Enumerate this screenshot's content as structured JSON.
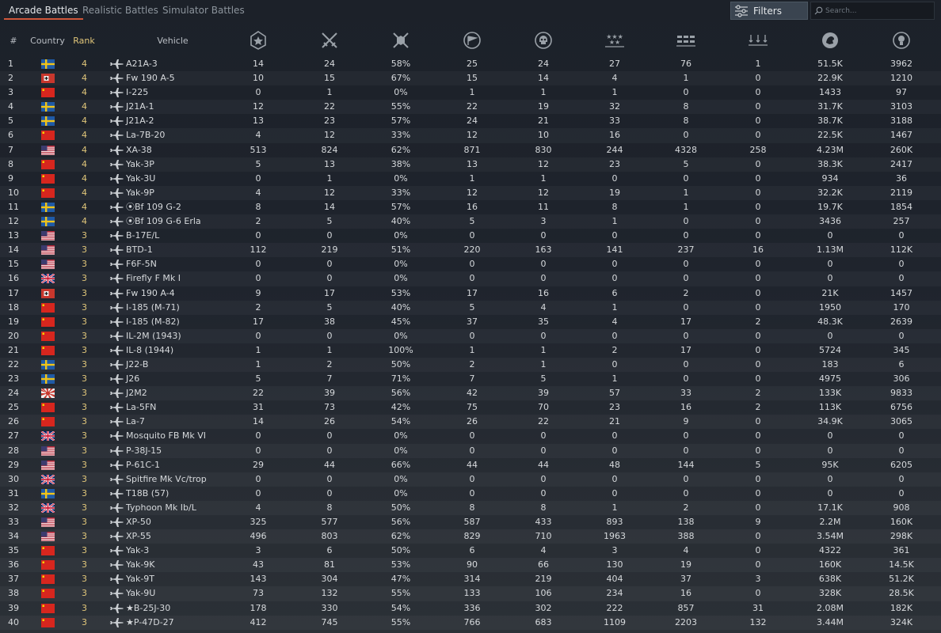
{
  "tabs": [
    {
      "label": "Arcade Battles",
      "active": true
    },
    {
      "label": "Realistic Battles",
      "active": false
    },
    {
      "label": "Simulator Battles",
      "active": false
    }
  ],
  "toolbar": {
    "filters_label": "Filters",
    "search_placeholder": "Search...",
    "search_value": ""
  },
  "columns": {
    "num": "#",
    "country": "Country",
    "rank": "Rank",
    "vehicle": "Vehicle",
    "stat_icons": [
      "battles-icon",
      "victories-icon",
      "win-rate-icon",
      "respawns-icon",
      "deaths-icon",
      "air-targets-destroyed-icon",
      "ground-targets-destroyed-icon",
      "naval-targets-destroyed-icon",
      "silver-lions-icon",
      "research-points-icon"
    ]
  },
  "colors": {
    "accent": "#d0563a",
    "rank": "#e0c67a",
    "text": "#d6d9dc"
  },
  "rows": [
    {
      "num": "1",
      "country": "sweden",
      "rank": "4",
      "vehicle": "A21A-3",
      "stats": [
        "14",
        "24",
        "58%",
        "25",
        "24",
        "27",
        "76",
        "1",
        "51.5K",
        "3962"
      ]
    },
    {
      "num": "2",
      "country": "germany",
      "rank": "4",
      "vehicle": "Fw 190 A-5",
      "stats": [
        "10",
        "15",
        "67%",
        "15",
        "14",
        "4",
        "1",
        "0",
        "22.9K",
        "1210"
      ]
    },
    {
      "num": "3",
      "country": "china",
      "rank": "4",
      "vehicle": "I-225",
      "stats": [
        "0",
        "1",
        "0%",
        "1",
        "1",
        "1",
        "0",
        "0",
        "1433",
        "97"
      ]
    },
    {
      "num": "4",
      "country": "sweden",
      "rank": "4",
      "vehicle": "J21A-1",
      "stats": [
        "12",
        "22",
        "55%",
        "22",
        "19",
        "32",
        "8",
        "0",
        "31.7K",
        "3103"
      ]
    },
    {
      "num": "5",
      "country": "sweden",
      "rank": "4",
      "vehicle": "J21A-2",
      "stats": [
        "13",
        "23",
        "57%",
        "24",
        "21",
        "33",
        "8",
        "0",
        "38.7K",
        "3188"
      ]
    },
    {
      "num": "6",
      "country": "china",
      "rank": "4",
      "vehicle": "La-7B-20",
      "stats": [
        "4",
        "12",
        "33%",
        "12",
        "10",
        "16",
        "0",
        "0",
        "22.5K",
        "1467"
      ]
    },
    {
      "num": "7",
      "country": "usa",
      "rank": "4",
      "vehicle": "XA-38",
      "stats": [
        "513",
        "824",
        "62%",
        "871",
        "830",
        "244",
        "4328",
        "258",
        "4.23M",
        "260K"
      ]
    },
    {
      "num": "8",
      "country": "china",
      "rank": "4",
      "vehicle": "Yak-3P",
      "stats": [
        "5",
        "13",
        "38%",
        "13",
        "12",
        "23",
        "5",
        "0",
        "38.3K",
        "2417"
      ]
    },
    {
      "num": "9",
      "country": "china",
      "rank": "4",
      "vehicle": "Yak-3U",
      "stats": [
        "0",
        "1",
        "0%",
        "1",
        "1",
        "0",
        "0",
        "0",
        "934",
        "36"
      ]
    },
    {
      "num": "10",
      "country": "china",
      "rank": "4",
      "vehicle": "Yak-9P",
      "stats": [
        "4",
        "12",
        "33%",
        "12",
        "12",
        "19",
        "1",
        "0",
        "32.2K",
        "2119"
      ]
    },
    {
      "num": "11",
      "country": "sweden",
      "rank": "4",
      "vehicle": "⦿Bf 109 G-2",
      "stats": [
        "8",
        "14",
        "57%",
        "16",
        "11",
        "8",
        "1",
        "0",
        "19.7K",
        "1854"
      ]
    },
    {
      "num": "12",
      "country": "sweden",
      "rank": "4",
      "vehicle": "⦿Bf 109 G-6 Erla",
      "stats": [
        "2",
        "5",
        "40%",
        "5",
        "3",
        "1",
        "0",
        "0",
        "3436",
        "257"
      ]
    },
    {
      "num": "13",
      "country": "usa",
      "rank": "3",
      "vehicle": "B-17E/L",
      "stats": [
        "0",
        "0",
        "0%",
        "0",
        "0",
        "0",
        "0",
        "0",
        "0",
        "0"
      ]
    },
    {
      "num": "14",
      "country": "usa",
      "rank": "3",
      "vehicle": "BTD-1",
      "stats": [
        "112",
        "219",
        "51%",
        "220",
        "163",
        "141",
        "237",
        "16",
        "1.13M",
        "112K"
      ]
    },
    {
      "num": "15",
      "country": "usa",
      "rank": "3",
      "vehicle": "F6F-5N",
      "stats": [
        "0",
        "0",
        "0%",
        "0",
        "0",
        "0",
        "0",
        "0",
        "0",
        "0"
      ]
    },
    {
      "num": "16",
      "country": "uk",
      "rank": "3",
      "vehicle": "Firefly F Mk I",
      "stats": [
        "0",
        "0",
        "0%",
        "0",
        "0",
        "0",
        "0",
        "0",
        "0",
        "0"
      ]
    },
    {
      "num": "17",
      "country": "germany",
      "rank": "3",
      "vehicle": "Fw 190 A-4",
      "stats": [
        "9",
        "17",
        "53%",
        "17",
        "16",
        "6",
        "2",
        "0",
        "21K",
        "1457"
      ]
    },
    {
      "num": "18",
      "country": "china",
      "rank": "3",
      "vehicle": "I-185 (M-71)",
      "stats": [
        "2",
        "5",
        "40%",
        "5",
        "4",
        "1",
        "0",
        "0",
        "1950",
        "170"
      ]
    },
    {
      "num": "19",
      "country": "china",
      "rank": "3",
      "vehicle": "I-185 (M-82)",
      "stats": [
        "17",
        "38",
        "45%",
        "37",
        "35",
        "4",
        "17",
        "2",
        "48.3K",
        "2639"
      ]
    },
    {
      "num": "20",
      "country": "china",
      "rank": "3",
      "vehicle": "IL-2M (1943)",
      "stats": [
        "0",
        "0",
        "0%",
        "0",
        "0",
        "0",
        "0",
        "0",
        "0",
        "0"
      ]
    },
    {
      "num": "21",
      "country": "china",
      "rank": "3",
      "vehicle": "IL-8 (1944)",
      "stats": [
        "1",
        "1",
        "100%",
        "1",
        "1",
        "2",
        "17",
        "0",
        "5724",
        "345"
      ]
    },
    {
      "num": "22",
      "country": "sweden",
      "rank": "3",
      "vehicle": "J22-B",
      "stats": [
        "1",
        "2",
        "50%",
        "2",
        "1",
        "0",
        "0",
        "0",
        "183",
        "6"
      ]
    },
    {
      "num": "23",
      "country": "sweden",
      "rank": "3",
      "vehicle": "J26",
      "stats": [
        "5",
        "7",
        "71%",
        "7",
        "5",
        "1",
        "0",
        "0",
        "4975",
        "306"
      ]
    },
    {
      "num": "24",
      "country": "japan",
      "rank": "3",
      "vehicle": "J2M2",
      "stats": [
        "22",
        "39",
        "56%",
        "42",
        "39",
        "57",
        "33",
        "2",
        "133K",
        "9833"
      ]
    },
    {
      "num": "25",
      "country": "china",
      "rank": "3",
      "vehicle": "La-5FN",
      "stats": [
        "31",
        "73",
        "42%",
        "75",
        "70",
        "23",
        "16",
        "2",
        "113K",
        "6756"
      ]
    },
    {
      "num": "26",
      "country": "china",
      "rank": "3",
      "vehicle": "La-7",
      "stats": [
        "14",
        "26",
        "54%",
        "26",
        "22",
        "21",
        "9",
        "0",
        "34.9K",
        "3065"
      ]
    },
    {
      "num": "27",
      "country": "uk",
      "rank": "3",
      "vehicle": "Mosquito FB Mk VI",
      "stats": [
        "0",
        "0",
        "0%",
        "0",
        "0",
        "0",
        "0",
        "0",
        "0",
        "0"
      ]
    },
    {
      "num": "28",
      "country": "usa",
      "rank": "3",
      "vehicle": "P-38J-15",
      "stats": [
        "0",
        "0",
        "0%",
        "0",
        "0",
        "0",
        "0",
        "0",
        "0",
        "0"
      ]
    },
    {
      "num": "29",
      "country": "usa",
      "rank": "3",
      "vehicle": "P-61C-1",
      "stats": [
        "29",
        "44",
        "66%",
        "44",
        "44",
        "48",
        "144",
        "5",
        "95K",
        "6205"
      ]
    },
    {
      "num": "30",
      "country": "uk",
      "rank": "3",
      "vehicle": "Spitfire Mk Vc/trop",
      "stats": [
        "0",
        "0",
        "0%",
        "0",
        "0",
        "0",
        "0",
        "0",
        "0",
        "0"
      ]
    },
    {
      "num": "31",
      "country": "sweden",
      "rank": "3",
      "vehicle": "T18B (57)",
      "stats": [
        "0",
        "0",
        "0%",
        "0",
        "0",
        "0",
        "0",
        "0",
        "0",
        "0"
      ]
    },
    {
      "num": "32",
      "country": "uk",
      "rank": "3",
      "vehicle": "Typhoon Mk Ib/L",
      "stats": [
        "4",
        "8",
        "50%",
        "8",
        "8",
        "1",
        "2",
        "0",
        "17.1K",
        "908"
      ]
    },
    {
      "num": "33",
      "country": "usa",
      "rank": "3",
      "vehicle": "XP-50",
      "stats": [
        "325",
        "577",
        "56%",
        "587",
        "433",
        "893",
        "138",
        "9",
        "2.2M",
        "160K"
      ]
    },
    {
      "num": "34",
      "country": "usa",
      "rank": "3",
      "vehicle": "XP-55",
      "stats": [
        "496",
        "803",
        "62%",
        "829",
        "710",
        "1963",
        "388",
        "0",
        "3.54M",
        "298K"
      ]
    },
    {
      "num": "35",
      "country": "china",
      "rank": "3",
      "vehicle": "Yak-3",
      "stats": [
        "3",
        "6",
        "50%",
        "6",
        "4",
        "3",
        "4",
        "0",
        "4322",
        "361"
      ]
    },
    {
      "num": "36",
      "country": "china",
      "rank": "3",
      "vehicle": "Yak-9K",
      "stats": [
        "43",
        "81",
        "53%",
        "90",
        "66",
        "130",
        "19",
        "0",
        "160K",
        "14.5K"
      ]
    },
    {
      "num": "37",
      "country": "china",
      "rank": "3",
      "vehicle": "Yak-9T",
      "stats": [
        "143",
        "304",
        "47%",
        "314",
        "219",
        "404",
        "37",
        "3",
        "638K",
        "51.2K"
      ]
    },
    {
      "num": "38",
      "country": "china",
      "rank": "3",
      "vehicle": "Yak-9U",
      "stats": [
        "73",
        "132",
        "55%",
        "133",
        "106",
        "234",
        "16",
        "0",
        "328K",
        "28.5K"
      ]
    },
    {
      "num": "39",
      "country": "china",
      "rank": "3",
      "vehicle": "★B-25J-30",
      "stats": [
        "178",
        "330",
        "54%",
        "336",
        "302",
        "222",
        "857",
        "31",
        "2.08M",
        "182K"
      ]
    },
    {
      "num": "40",
      "country": "china",
      "rank": "3",
      "vehicle": "★P-47D-27",
      "stats": [
        "412",
        "745",
        "55%",
        "766",
        "683",
        "1109",
        "2203",
        "132",
        "3.44M",
        "324K"
      ]
    }
  ]
}
